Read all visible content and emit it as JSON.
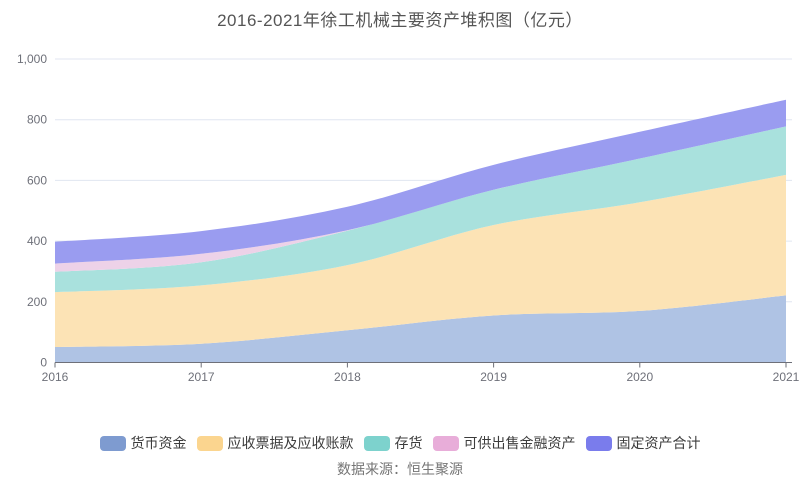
{
  "chart_data": {
    "type": "area",
    "stacked": true,
    "smooth": true,
    "title": "2016-2021年徐工机械主要资产堆积图（亿元）",
    "xlabel": "",
    "ylabel": "",
    "x_labels": [
      "2016",
      "2017",
      "2018",
      "2019",
      "2020",
      "2021"
    ],
    "ylim": [
      0,
      1000
    ],
    "yticks": [
      0,
      200,
      400,
      600,
      800,
      1000
    ],
    "ytick_labels": [
      "0",
      "200",
      "400",
      "600",
      "800",
      "1,000"
    ],
    "grid": true,
    "legend_position": "bottom",
    "series": [
      {
        "name": "货币资金",
        "legend_color": "#7E9BD0",
        "area_color": "#AFC3E4",
        "values": [
          51,
          62,
          106,
          155,
          170,
          221
        ]
      },
      {
        "name": "应收票据及应收账款",
        "legend_color": "#FBD58F",
        "area_color": "#FCE3B5",
        "values": [
          181,
          192,
          215,
          298,
          358,
          397
        ]
      },
      {
        "name": "存货",
        "legend_color": "#7DD2CD",
        "area_color": "#A9E1DD",
        "values": [
          67,
          76,
          113,
          116,
          144,
          160
        ]
      },
      {
        "name": "可供出售金融资产",
        "legend_color": "#E8ADD9",
        "area_color": "#EDD2E8",
        "values": [
          27,
          28,
          2,
          0,
          0,
          0
        ]
      },
      {
        "name": "固定资产合计",
        "legend_color": "#7A7CEC",
        "area_color": "#9A9CF0",
        "values": [
          72,
          75,
          77,
          82,
          88,
          88
        ]
      }
    ],
    "colors": {
      "axis_line": "#6E7079",
      "axis_label": "#6E7079",
      "gridline": "#E0E6F1",
      "title_text": "#555555",
      "legend_text": "#3c3c3c",
      "footer_text": "#757575"
    }
  },
  "footer": {
    "source": "数据来源：恒生聚源"
  }
}
